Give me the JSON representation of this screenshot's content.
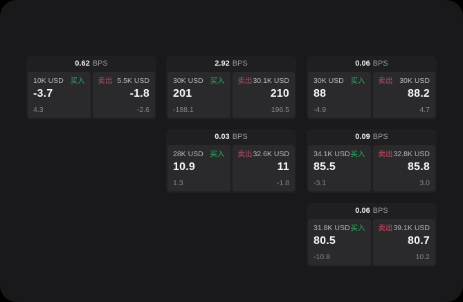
{
  "colors": {
    "buy_green": "#2fac68",
    "sell_red": "#c44d66",
    "window_bg": "#19191b",
    "card_bg": "#1f1f21",
    "panel_bg": "#2a2a2c"
  },
  "cards": [
    {
      "bps": "0.62",
      "unit": "BPS",
      "buy": {
        "amount": "10K USD",
        "tag": "买入",
        "value": "-3.7",
        "sub": "4.3"
      },
      "sell": {
        "tag": "卖出",
        "amount": "5.5K USD",
        "value": "-1.8",
        "sub": "-2.6"
      }
    },
    {
      "bps": "2.92",
      "unit": "BPS",
      "buy": {
        "amount": "30K USD",
        "tag": "买入",
        "value": "201",
        "sub": "-188.1"
      },
      "sell": {
        "tag": "卖出",
        "amount": "30.1K USD",
        "value": "210",
        "sub": "196.5"
      }
    },
    {
      "bps": "0.06",
      "unit": "BPS",
      "buy": {
        "amount": "30K USD",
        "tag": "买入",
        "value": "88",
        "sub": "-4.9"
      },
      "sell": {
        "tag": "卖出",
        "amount": "30K USD",
        "value": "88.2",
        "sub": "4.7"
      }
    },
    {
      "bps": "0.03",
      "unit": "BPS",
      "buy": {
        "amount": "28K USD",
        "tag": "买入",
        "value": "10.9",
        "sub": "1.3"
      },
      "sell": {
        "tag": "卖出",
        "amount": "32.6K USD",
        "value": "11",
        "sub": "-1.8"
      }
    },
    {
      "bps": "0.09",
      "unit": "BPS",
      "buy": {
        "amount": "34.1K USD",
        "tag": "买入",
        "value": "85.5",
        "sub": "-3.1"
      },
      "sell": {
        "tag": "卖出",
        "amount": "32.8K USD",
        "value": "85.8",
        "sub": "3.0"
      }
    },
    {
      "bps": "0.06",
      "unit": "BPS",
      "buy": {
        "amount": "31.8K USD",
        "tag": "买入",
        "value": "80.5",
        "sub": "-10.8"
      },
      "sell": {
        "tag": "卖出",
        "amount": "39.1K USD",
        "value": "80.7",
        "sub": "10.2"
      }
    }
  ]
}
